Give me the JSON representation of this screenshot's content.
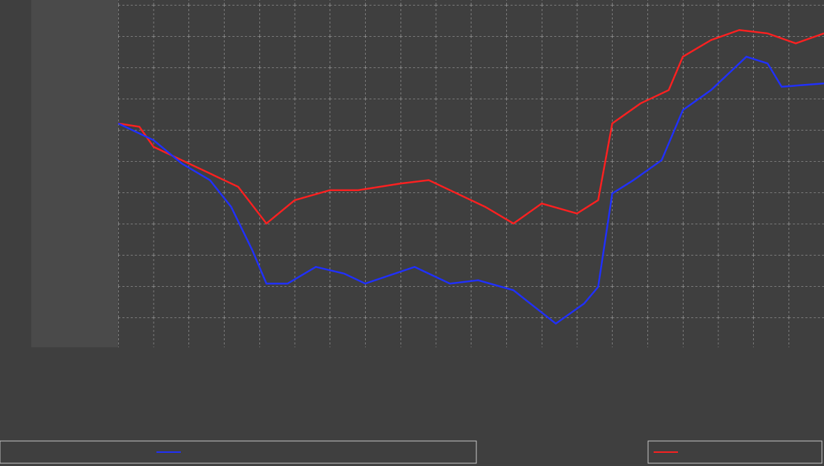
{
  "chart_data": {
    "type": "line",
    "xlim": [
      0,
      100
    ],
    "ylim": [
      0,
      10.2
    ],
    "series": [
      {
        "color": "#ff2020",
        "x": [
          0,
          3,
          5,
          9,
          13,
          17,
          21,
          25,
          30,
          34,
          40,
          44,
          48,
          52,
          56,
          60,
          65,
          68,
          70,
          74,
          78,
          80,
          84,
          88,
          92,
          96,
          100
        ],
        "values": [
          6.5,
          6.4,
          5.8,
          5.4,
          5.0,
          4.6,
          3.5,
          4.2,
          4.5,
          4.5,
          4.7,
          4.8,
          4.4,
          4.0,
          3.5,
          4.1,
          3.8,
          4.2,
          6.5,
          7.1,
          7.5,
          8.5,
          9.0,
          9.3,
          9.2,
          8.9,
          9.2
        ]
      },
      {
        "color": "#2030ff",
        "x": [
          0,
          5,
          9,
          13,
          16,
          19,
          21,
          24,
          28,
          32,
          35,
          42,
          47,
          51,
          56,
          62,
          66,
          68,
          70,
          73,
          77,
          80,
          84,
          89,
          92,
          94,
          100
        ],
        "values": [
          6.5,
          6.0,
          5.3,
          4.8,
          4.0,
          2.7,
          1.7,
          1.7,
          2.2,
          2.0,
          1.7,
          2.2,
          1.7,
          1.8,
          1.5,
          0.5,
          1.1,
          1.6,
          4.4,
          4.8,
          5.4,
          6.9,
          7.5,
          8.5,
          8.3,
          7.6,
          7.7
        ]
      }
    ]
  }
}
